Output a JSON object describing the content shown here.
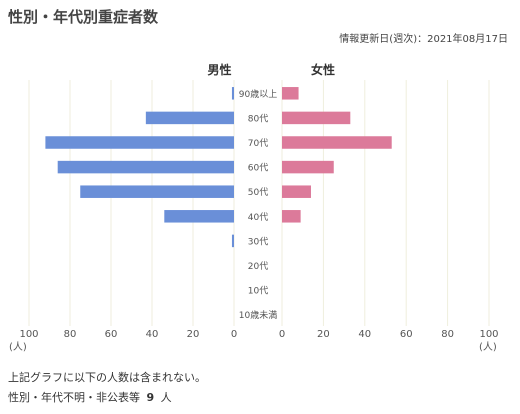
{
  "page": {
    "title": "性別・年代別重症者数",
    "updated": "情報更新日(週次)：2021年08月17日",
    "note": "上記グラフに以下の人数は含まれない。",
    "unknown_label": "性別・年代不明・非公表等",
    "unknown_value": "9",
    "unknown_unit": "人"
  },
  "colors": {
    "male": "#6a8fd8",
    "female": "#dc7a9a",
    "grid": "#efeedd",
    "axis_text": "#555555"
  },
  "chart_data": {
    "type": "bar",
    "orientation": "horizontal-butterfly",
    "categories": [
      "90歳以上",
      "80代",
      "70代",
      "60代",
      "50代",
      "40代",
      "30代",
      "20代",
      "10代",
      "10歳未満"
    ],
    "series": [
      {
        "name": "男性",
        "values": [
          1,
          43,
          92,
          86,
          75,
          34,
          1,
          0,
          0,
          0
        ]
      },
      {
        "name": "女性",
        "values": [
          8,
          33,
          53,
          25,
          14,
          9,
          0,
          0,
          0,
          0
        ]
      }
    ],
    "xlim": [
      0,
      100
    ],
    "left_ticks": [
      "100",
      "80",
      "60",
      "40",
      "20",
      "0"
    ],
    "right_ticks": [
      "0",
      "20",
      "40",
      "60",
      "80",
      "100"
    ],
    "unit": "(人)",
    "grid": true
  }
}
